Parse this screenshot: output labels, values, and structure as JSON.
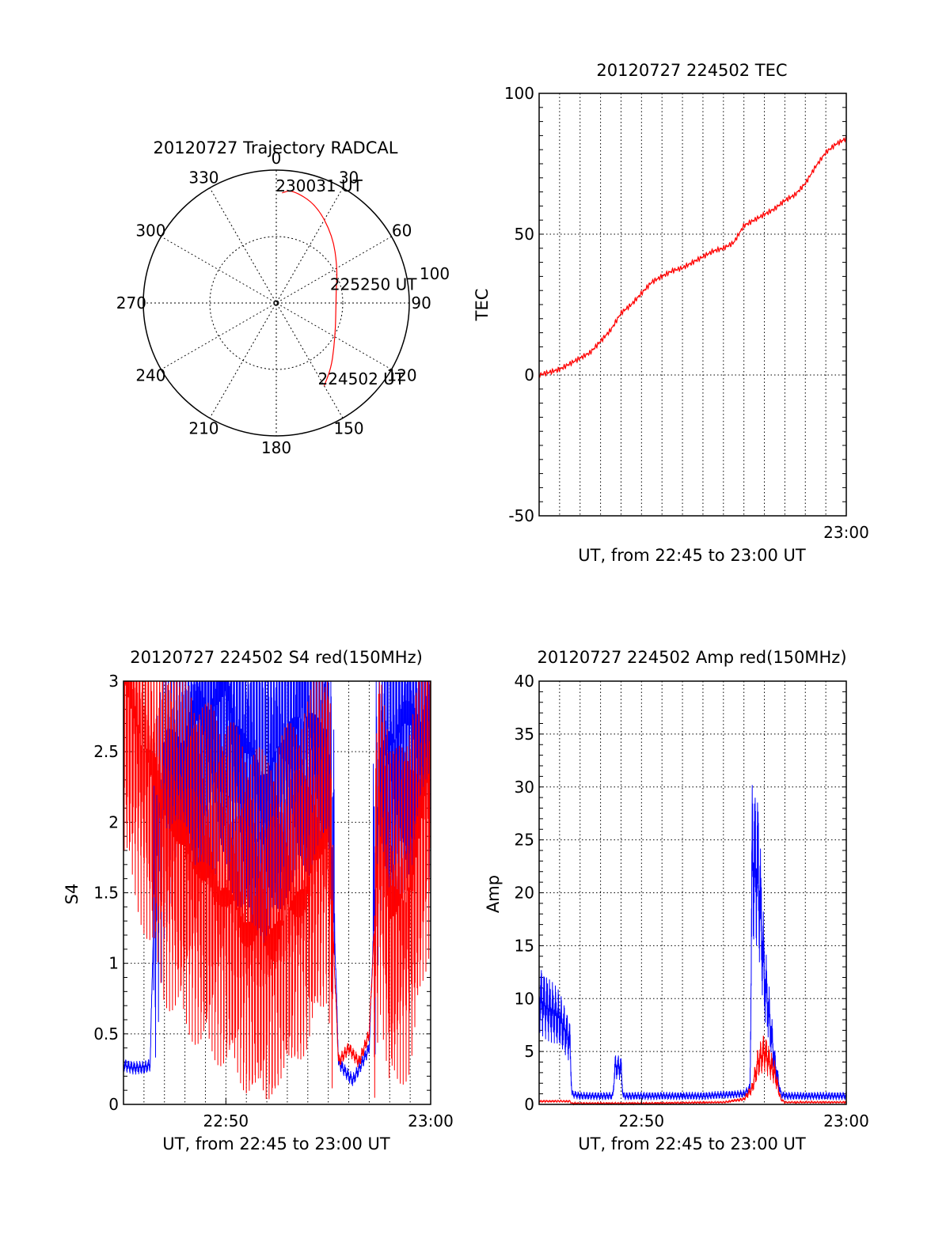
{
  "chart_data": [
    {
      "type": "polar",
      "title": "20120727 Trajectory RADCAL",
      "azimuth_labels": [
        "0",
        "30",
        "60",
        "90",
        "120",
        "150",
        "180",
        "210",
        "240",
        "270",
        "300",
        "330"
      ],
      "radial_label": "100",
      "trajectory": {
        "color": "#ff0000",
        "points": [
          {
            "az": 150,
            "r": 0.72
          },
          {
            "az": 140,
            "r": 0.64
          },
          {
            "az": 128,
            "r": 0.55
          },
          {
            "az": 112,
            "r": 0.48
          },
          {
            "az": 95,
            "r": 0.45
          },
          {
            "az": 78,
            "r": 0.46
          },
          {
            "az": 60,
            "r": 0.53
          },
          {
            "az": 40,
            "r": 0.66
          },
          {
            "az": 22,
            "r": 0.8
          },
          {
            "az": 8,
            "r": 0.86
          },
          {
            "az": 3,
            "r": 0.83
          }
        ],
        "annotations": [
          {
            "text": "230031 UT",
            "az": 3,
            "r": 0.83
          },
          {
            "text": "225250 UT",
            "az": 79,
            "r": 0.46
          },
          {
            "text": "224502 UT",
            "az": 150,
            "r": 0.72
          }
        ]
      }
    },
    {
      "type": "line",
      "title": "20120727 224502 TEC",
      "xlabel": "UT, from 22:45 to 23:00 UT",
      "ylabel": "TEC",
      "xlim": [
        0,
        15
      ],
      "ylim": [
        -50,
        100
      ],
      "yticks": [
        "-50",
        "0",
        "50",
        "100"
      ],
      "xticks": [
        {
          "at": 15,
          "label": "23:00"
        }
      ],
      "grid": true,
      "series": [
        {
          "color": "#ff0000",
          "x": [
            0,
            0.5,
            1,
            1.5,
            2,
            2.5,
            3,
            3.5,
            4,
            4.5,
            5,
            5.5,
            6,
            6.5,
            7,
            7.5,
            8,
            8.5,
            9,
            9.5,
            10,
            10.5,
            11,
            11.5,
            12,
            12.5,
            13,
            13.5,
            14,
            14.5,
            15
          ],
          "y": [
            0,
            1,
            2,
            4,
            6,
            8,
            12,
            16,
            22,
            25,
            29,
            33,
            35,
            37,
            38,
            40,
            42,
            44,
            45,
            47,
            53,
            55,
            57,
            59,
            62,
            64,
            68,
            74,
            79,
            82,
            84
          ]
        }
      ]
    },
    {
      "type": "line",
      "title": "20120727 224502 S4 red(150MHz)",
      "xlabel": "UT, from 22:45 to 23:00 UT",
      "ylabel": "S4",
      "xlim": [
        0,
        15
      ],
      "ylim": [
        0,
        3
      ],
      "yticks": [
        "0",
        "0.5",
        "1",
        "1.5",
        "2",
        "2.5",
        "3"
      ],
      "xticks": [
        {
          "at": 5,
          "label": "22:50"
        },
        {
          "at": 15,
          "label": "23:00"
        }
      ],
      "grid": true,
      "series": [
        {
          "color": "#0000ff",
          "x": [
            0,
            0.5,
            1,
            1.3,
            1.5,
            2,
            3,
            4,
            5,
            6,
            7,
            8,
            9,
            10,
            10.5,
            11,
            11.2,
            11.5,
            12,
            12.5,
            13,
            14,
            15
          ],
          "y": [
            0.28,
            0.26,
            0.26,
            0.28,
            1.5,
            2.4,
            2.6,
            2.8,
            2.9,
            2.5,
            2.3,
            2.7,
            2.8,
            2.7,
            0.3,
            0.2,
            0.17,
            0.25,
            0.4,
            2.4,
            2.6,
            2.7,
            2.8
          ]
        },
        {
          "color": "#ff0000",
          "x": [
            0,
            1,
            2,
            3,
            4,
            5,
            6,
            7,
            8,
            9,
            10,
            10.5,
            11,
            11.5,
            12,
            12.5,
            13,
            14,
            15
          ],
          "y": [
            3,
            2.5,
            2.0,
            1.8,
            1.6,
            1.5,
            1.3,
            1.2,
            1.4,
            1.6,
            2.0,
            0.3,
            0.4,
            0.3,
            0.5,
            2.0,
            1.3,
            1.5,
            2.4
          ]
        }
      ]
    },
    {
      "type": "line",
      "title": "20120727 224502 Amp red(150MHz)",
      "xlabel": "UT, from 22:45 to 23:00 UT",
      "ylabel": "Amp",
      "xlim": [
        0,
        15
      ],
      "ylim": [
        0,
        40
      ],
      "yticks": [
        "0",
        "5",
        "10",
        "15",
        "20",
        "25",
        "30",
        "35",
        "40"
      ],
      "xticks": [
        {
          "at": 5,
          "label": "22:50"
        },
        {
          "at": 15,
          "label": "23:00"
        }
      ],
      "grid": true,
      "series": [
        {
          "color": "#0000ff",
          "x": [
            0,
            0.5,
            1,
            1.5,
            1.6,
            2,
            3,
            3.6,
            3.7,
            4.0,
            4.1,
            5,
            6,
            7,
            8,
            9,
            10,
            10.3,
            10.4,
            10.7,
            11,
            11.5,
            11.8,
            12,
            13,
            14,
            15
          ],
          "y": [
            10,
            9,
            8,
            6,
            1,
            0.8,
            0.8,
            0.8,
            3.5,
            3.5,
            0.8,
            0.8,
            0.8,
            0.8,
            0.8,
            0.9,
            1,
            1.5,
            23,
            22,
            12,
            4,
            1,
            0.8,
            0.8,
            0.8,
            0.8
          ]
        },
        {
          "color": "#ff0000",
          "x": [
            0,
            1,
            1.5,
            1.6,
            5,
            9,
            10,
            10.4,
            10.7,
            11,
            11.5,
            11.8,
            12,
            15
          ],
          "y": [
            0.3,
            0.3,
            0.3,
            0.1,
            0.1,
            0.2,
            0.5,
            1.5,
            4,
            5,
            3,
            0.5,
            0.2,
            0.2
          ]
        }
      ]
    }
  ]
}
